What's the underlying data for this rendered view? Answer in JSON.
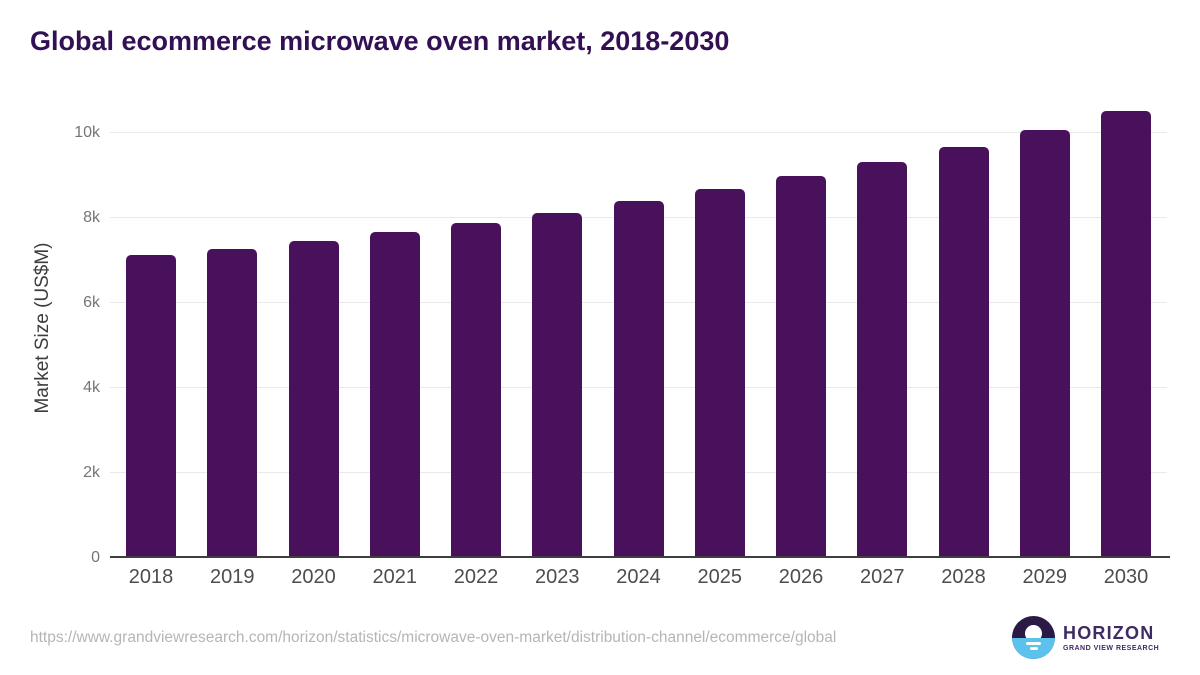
{
  "title": "Global ecommerce microwave oven market, 2018-2030",
  "footer": {
    "source_url": "https://www.grandviewresearch.com/horizon/statistics/microwave-oven-market/distribution-channel/ecommerce/global",
    "logo": {
      "name": "HORIZON",
      "tagline": "GRAND VIEW RESEARCH"
    }
  },
  "colors": {
    "bar": "#49115c",
    "title": "#321053",
    "grid": "#e9e9e9",
    "axis_line": "#3f3f3f",
    "tick_label": "#757575",
    "x_label": "#4d4d4d",
    "y_axis_title": "#3d3d3d",
    "url": "#b5b5b5",
    "logo_dark": "#3e2b63",
    "logo_top": "#2a1a45",
    "logo_sea": "#5bc2ee"
  },
  "chart_data": {
    "type": "bar",
    "title": "Global ecommerce microwave oven market, 2018-2030",
    "categories": [
      "2018",
      "2019",
      "2020",
      "2021",
      "2022",
      "2023",
      "2024",
      "2025",
      "2026",
      "2027",
      "2028",
      "2029",
      "2030"
    ],
    "values": [
      7120,
      7280,
      7470,
      7660,
      7880,
      8130,
      8390,
      8680,
      8990,
      9320,
      9660,
      10070,
      10530
    ],
    "xlabel": "",
    "ylabel": "Market Size (US$M)",
    "ylim": [
      0,
      10700
    ],
    "yticks": [
      {
        "value": 0,
        "label": "0"
      },
      {
        "value": 2000,
        "label": "2k"
      },
      {
        "value": 4000,
        "label": "4k"
      },
      {
        "value": 6000,
        "label": "6k"
      },
      {
        "value": 8000,
        "label": "8k"
      },
      {
        "value": 10000,
        "label": "10k"
      }
    ],
    "grid": "horizontal gridlines on",
    "legend": "none",
    "bar_color": "#49115c"
  }
}
